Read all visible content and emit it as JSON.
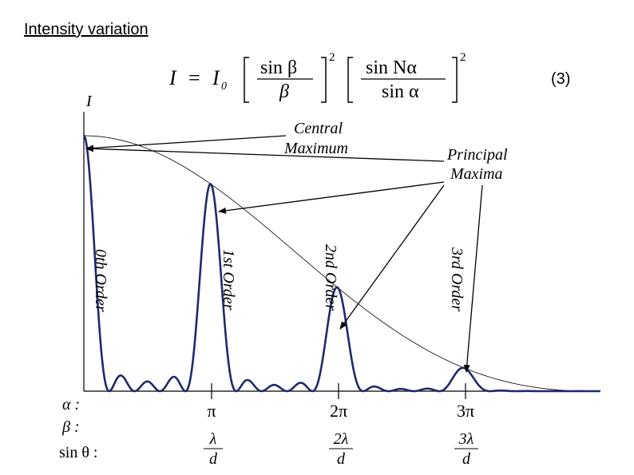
{
  "title": "Intensity variation",
  "equation": {
    "lhs": "I",
    "eq": "=",
    "i0": "I",
    "i0_sub": "0",
    "frac1_num": "sin β",
    "frac1_den": "β",
    "frac2_num": "sin Nα",
    "frac2_den": "sin α",
    "power": "2",
    "number": "(3)"
  },
  "axis": {
    "y_label": "I"
  },
  "annotations": {
    "central_line1": "Central",
    "central_line2": "Maximum",
    "principal_line1": "Principal",
    "principal_line2": "Maxima"
  },
  "orders": [
    "0th Order",
    "1st Order",
    "2nd Order",
    "3rd Order"
  ],
  "row_labels": {
    "alpha": "α :",
    "beta": "β :",
    "sin_theta": "sin θ :"
  },
  "ticks": {
    "alpha_values": [
      "π",
      "2π",
      "3π"
    ],
    "sin_numerators": [
      "λ",
      "2λ",
      "3λ"
    ],
    "sin_denominator": "d"
  }
}
